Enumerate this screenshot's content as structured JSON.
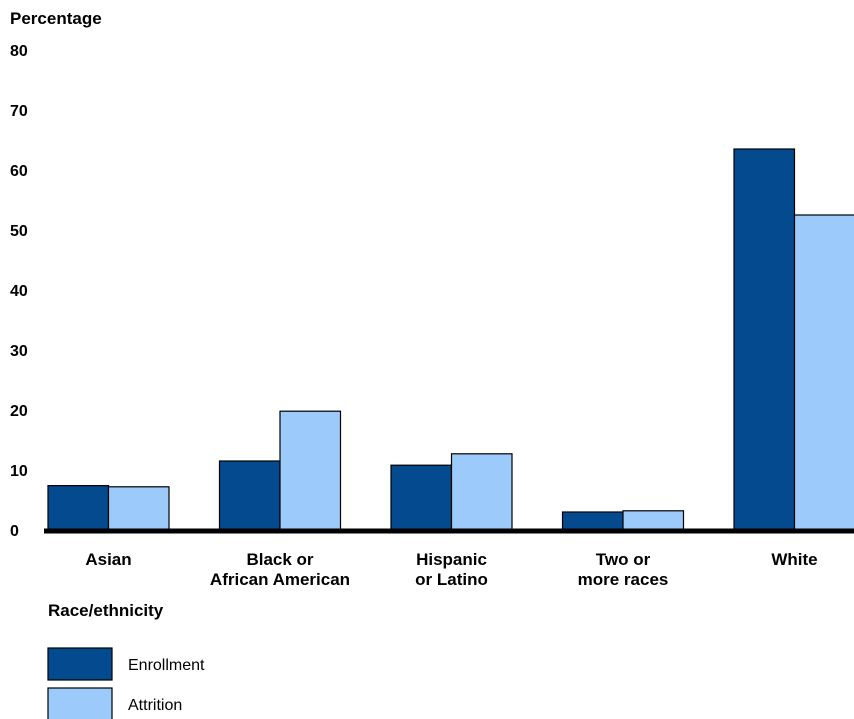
{
  "chart_data": {
    "type": "bar",
    "ylabel": "Percentage",
    "xlabel": "Race/ethnicity",
    "ylim": [
      0,
      80
    ],
    "yticks": [
      0,
      10,
      20,
      30,
      40,
      50,
      60,
      70,
      80
    ],
    "categories": [
      [
        "Asian"
      ],
      [
        "Black or",
        "African American"
      ],
      [
        "Hispanic",
        "or Latino"
      ],
      [
        "Two or",
        "more races"
      ],
      [
        "White"
      ]
    ],
    "series": [
      {
        "name": "Enrollment",
        "color": "#034a8f",
        "values": [
          7.4,
          11.5,
          10.8,
          3.0,
          63.5
        ]
      },
      {
        "name": "Attrition",
        "color": "#9ccbfb",
        "values": [
          7.2,
          19.8,
          12.7,
          3.2,
          52.5
        ]
      }
    ],
    "grid": false,
    "legend": "bottom-left"
  }
}
